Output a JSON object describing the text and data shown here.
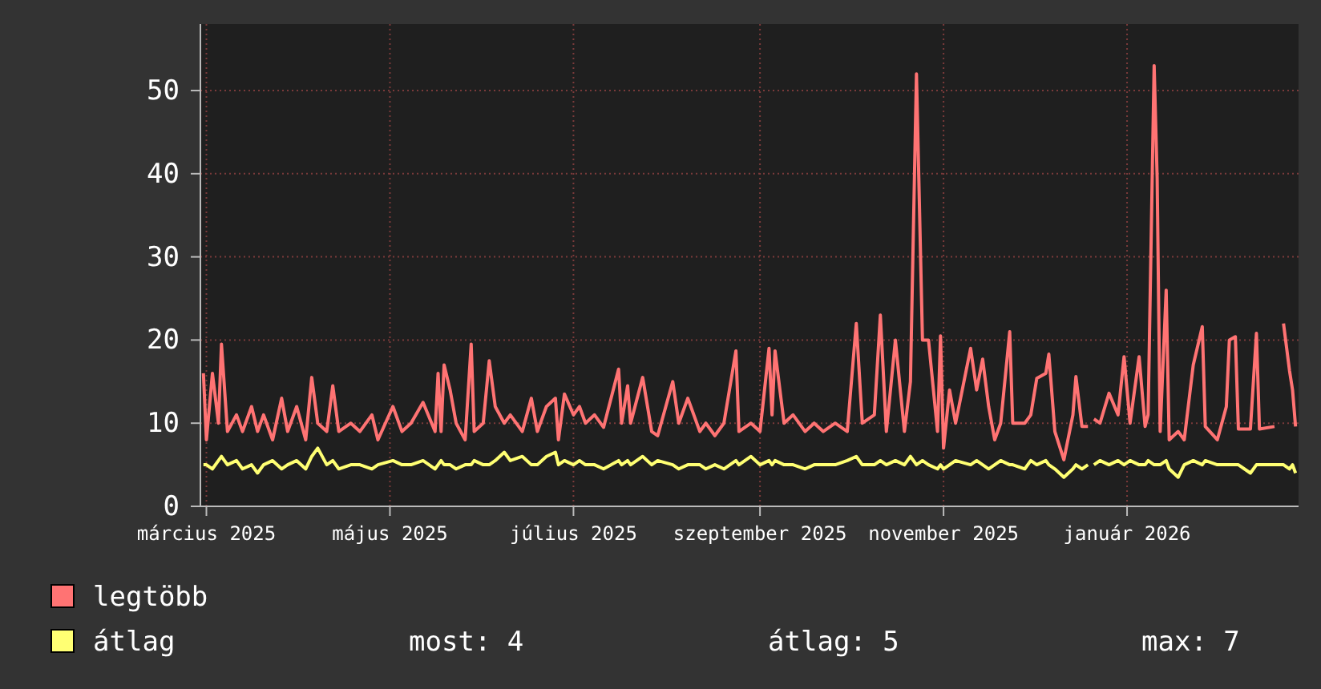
{
  "chart_data": {
    "type": "line",
    "xlim": [
      "2025-03-14",
      "2026-03-14"
    ],
    "ylim": [
      0,
      58
    ],
    "xticks": [
      {
        "value": "2025-03-16",
        "label": "március 2025"
      },
      {
        "value": "2025-05-16",
        "label": "május 2025"
      },
      {
        "value": "2025-07-16",
        "label": "július 2025"
      },
      {
        "value": "2025-09-16",
        "label": "szeptember 2025"
      },
      {
        "value": "2025-11-16",
        "label": "november 2025"
      },
      {
        "value": "2026-01-16",
        "label": "január 2026"
      }
    ],
    "yticks": [
      0,
      10,
      20,
      30,
      40,
      50
    ],
    "grid": true,
    "legend": "bottom",
    "marker": "none",
    "line_style": "solid",
    "annotations": [
      "most: 4",
      "átlag: 5",
      "max: 7"
    ],
    "x": [
      "2025-03-15",
      "2025-03-16",
      "2025-03-18",
      "2025-03-20",
      "2025-03-21",
      "2025-03-23",
      "2025-03-26",
      "2025-03-28",
      "2025-03-31",
      "2025-04-02",
      "2025-04-04",
      "2025-04-07",
      "2025-04-10",
      "2025-04-12",
      "2025-04-15",
      "2025-04-18",
      "2025-04-20",
      "2025-04-22",
      "2025-04-25",
      "2025-04-27",
      "2025-04-29",
      "2025-05-03",
      "2025-05-06",
      "2025-05-10",
      "2025-05-12",
      "2025-05-17",
      "2025-05-20",
      "2025-05-23",
      "2025-05-27",
      "2025-05-31",
      "2025-06-01",
      "2025-06-02",
      "2025-06-03",
      "2025-06-05",
      "2025-06-07",
      "2025-06-10",
      "2025-06-12",
      "2025-06-13",
      "2025-06-16",
      "2025-06-18",
      "2025-06-20",
      "2025-06-23",
      "2025-06-25",
      "2025-06-29",
      "2025-07-02",
      "2025-07-04",
      "2025-07-07",
      "2025-07-10",
      "2025-07-11",
      "2025-07-13",
      "2025-07-16",
      "2025-07-18",
      "2025-07-20",
      "2025-07-23",
      "2025-07-26",
      "2025-07-31",
      "2025-08-01",
      "2025-08-03",
      "2025-08-04",
      "2025-08-08",
      "2025-08-11",
      "2025-08-13",
      "2025-08-18",
      "2025-08-20",
      "2025-08-23",
      "2025-08-27",
      "2025-08-29",
      "2025-09-01",
      "2025-09-04",
      "2025-09-08",
      "2025-09-09",
      "2025-09-13",
      "2025-09-16",
      "2025-09-19",
      "2025-09-20",
      "2025-09-21",
      "2025-09-24",
      "2025-09-27",
      "2025-10-01",
      "2025-10-04",
      "2025-10-07",
      "2025-10-11",
      "2025-10-15",
      "2025-10-18",
      "2025-10-20",
      "2025-10-24",
      "2025-10-26",
      "2025-10-28",
      "2025-10-31",
      "2025-11-03",
      "2025-11-05",
      "2025-11-07",
      "2025-11-09",
      "2025-11-11",
      "2025-11-14",
      "2025-11-15",
      "2025-11-16",
      "2025-11-18",
      "2025-11-20",
      "2025-11-25",
      "2025-11-27",
      "2025-11-29",
      "2025-12-01",
      "2025-12-03",
      "2025-12-05",
      "2025-12-08",
      "2025-12-09",
      "2025-12-13",
      "2025-12-15",
      "2025-12-17",
      "2025-12-20",
      "2025-12-21",
      "2025-12-23",
      "2025-12-26",
      "2025-12-29",
      "2025-12-30",
      "2026-01-01",
      "2026-01-03",
      "2026-01-04",
      "2026-01-05",
      "2026-01-07",
      "2026-01-10",
      "2026-01-13",
      "2026-01-15",
      "2026-01-17",
      "2026-01-20",
      "2026-01-22",
      "2026-01-23",
      "2026-01-25",
      "2026-01-26",
      "2026-01-27",
      "2026-01-29",
      "2026-01-30",
      "2026-02-02",
      "2026-02-04",
      "2026-02-07",
      "2026-02-10",
      "2026-02-11",
      "2026-02-15",
      "2026-02-18",
      "2026-02-19",
      "2026-02-21",
      "2026-02-22",
      "2026-02-26",
      "2026-02-28",
      "2026-03-01",
      "2026-03-06",
      "2026-03-07",
      "2026-03-09",
      "2026-03-11",
      "2026-03-12",
      "2026-03-13"
    ],
    "series": [
      {
        "name": "legtöbb",
        "color": "#ff7373",
        "values": [
          16,
          8,
          16,
          10,
          19.5,
          9,
          11,
          9,
          12,
          9,
          11,
          8,
          13,
          9,
          12,
          8,
          15.5,
          10,
          9,
          14.5,
          9,
          10,
          9,
          11,
          8,
          12,
          9,
          10,
          12.5,
          9,
          16,
          9,
          17,
          14,
          10,
          8,
          19.5,
          9,
          10,
          17.5,
          12,
          10,
          11,
          9,
          13,
          9,
          12,
          13,
          8,
          13.5,
          11,
          12,
          10,
          11,
          9.5,
          16.5,
          10,
          14.5,
          10,
          15.5,
          9,
          8.5,
          15,
          10,
          13,
          9,
          10,
          8.5,
          10,
          18.7,
          9,
          10,
          9,
          19,
          11,
          18.7,
          10,
          11,
          9,
          10,
          9,
          10,
          9,
          22,
          10,
          11,
          23,
          9,
          20,
          9,
          15,
          52,
          20,
          20,
          9,
          20.5,
          7,
          14,
          10,
          19,
          14,
          17.7,
          12,
          8,
          10,
          21,
          10,
          10,
          11,
          15.4,
          16,
          18.3,
          9,
          5.6,
          11,
          15.6,
          9.6,
          9.6,
          null,
          10.5,
          10,
          13.6,
          11,
          18,
          10,
          18,
          9.6,
          11,
          53,
          39.5,
          9,
          26,
          8,
          9,
          8,
          17,
          21.6,
          9.6,
          8,
          12,
          20,
          20.4,
          9.3,
          9.3,
          20.8,
          9.3,
          9.6,
          null,
          22,
          16.3,
          14,
          9.6
        ]
      },
      {
        "name": "átlag",
        "color": "#ffff73",
        "values": [
          5,
          5,
          4.5,
          5.5,
          6,
          5,
          5.5,
          4.5,
          5,
          4,
          5,
          5.5,
          4.5,
          5,
          5.5,
          4.5,
          6,
          7,
          5,
          5.5,
          4.5,
          5,
          5,
          4.5,
          5,
          5.5,
          5,
          5,
          5.5,
          4.5,
          5,
          5.5,
          5,
          5,
          4.5,
          5,
          5,
          5.5,
          5,
          5,
          5.5,
          6.5,
          5.5,
          6,
          5,
          5,
          6,
          6.5,
          5,
          5.5,
          5,
          5.5,
          5,
          5,
          4.5,
          5.5,
          5,
          5.5,
          5,
          6,
          5,
          5.5,
          5,
          4.5,
          5,
          5,
          4.5,
          5,
          4.5,
          5.5,
          5,
          6,
          5,
          5.5,
          5,
          5.5,
          5,
          5,
          4.5,
          5,
          5,
          5,
          5.5,
          6,
          5,
          5,
          5.5,
          5,
          5.5,
          5,
          6,
          5,
          5.5,
          5,
          4.5,
          5,
          4.5,
          5,
          5.5,
          5,
          5.5,
          5,
          4.5,
          5,
          5.5,
          5,
          5,
          4.5,
          5.5,
          5,
          5.5,
          5,
          4.5,
          3.5,
          4.5,
          5,
          4.5,
          5,
          null,
          5,
          5.5,
          5,
          5.5,
          5,
          5.5,
          5,
          5,
          5.5,
          5,
          5,
          5,
          5.5,
          4.5,
          3.5,
          5,
          5.5,
          5,
          5.5,
          5,
          5,
          5,
          5,
          5,
          4,
          5,
          5,
          5,
          5,
          5,
          4.5,
          5,
          4
        ]
      }
    ]
  }
}
